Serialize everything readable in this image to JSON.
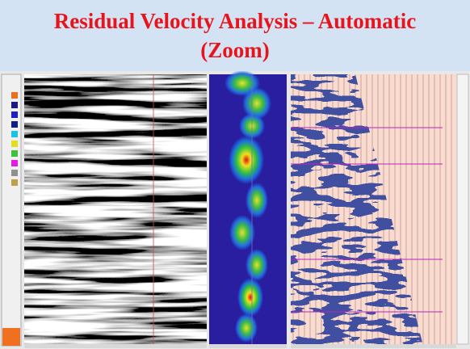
{
  "header": {
    "title_line1": "Residual Velocity Analysis – Automatic",
    "title_line2": "(Zoom)"
  }
}
